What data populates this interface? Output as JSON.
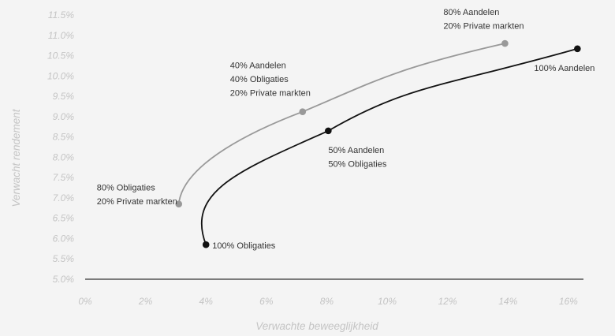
{
  "chart_data": {
    "type": "line",
    "xlabel": "Verwachte beweeglijkheid",
    "ylabel": "Verwacht rendement",
    "xlim": [
      0,
      16.5
    ],
    "ylim": [
      5.0,
      11.5
    ],
    "x_ticks": [
      0,
      2,
      4,
      6,
      8,
      10,
      12,
      14,
      16
    ],
    "x_tick_labels": [
      "0%",
      "2%",
      "4%",
      "6%",
      "8%",
      "10%",
      "12%",
      "14%",
      "16%"
    ],
    "y_ticks": [
      5.0,
      5.5,
      6.0,
      6.5,
      7.0,
      7.5,
      8.0,
      8.5,
      9.0,
      9.5,
      10.0,
      10.5,
      11.0,
      11.5
    ],
    "y_tick_labels": [
      "5.0%",
      "5.5%",
      "6.0%",
      "6.5%",
      "7.0%",
      "7.5%",
      "8.0%",
      "8.5%",
      "9.0%",
      "9.5%",
      "10.0%",
      "10.5%",
      "11.0%",
      "11.5%"
    ],
    "grid": false,
    "series": [
      {
        "color": "#999999",
        "points": [
          {
            "x": 3.1,
            "y": 6.85,
            "label": [
              "80% Obligaties",
              "20% Private markten"
            ]
          },
          {
            "x": 7.2,
            "y": 9.12,
            "label": [
              "40% Aandelen",
              "40% Obligaties",
              "20% Private markten"
            ]
          },
          {
            "x": 13.9,
            "y": 10.8,
            "label": [
              "80% Aandelen",
              "20% Private markten"
            ]
          }
        ]
      },
      {
        "color": "#111111",
        "points": [
          {
            "x": 4.0,
            "y": 5.85,
            "label": [
              "100% Obligaties"
            ]
          },
          {
            "x": 8.05,
            "y": 8.65,
            "label": [
              "50% Aandelen",
              "50% Obligaties"
            ]
          },
          {
            "x": 16.3,
            "y": 10.67,
            "label": [
              "100% Aandelen"
            ]
          }
        ]
      }
    ]
  }
}
